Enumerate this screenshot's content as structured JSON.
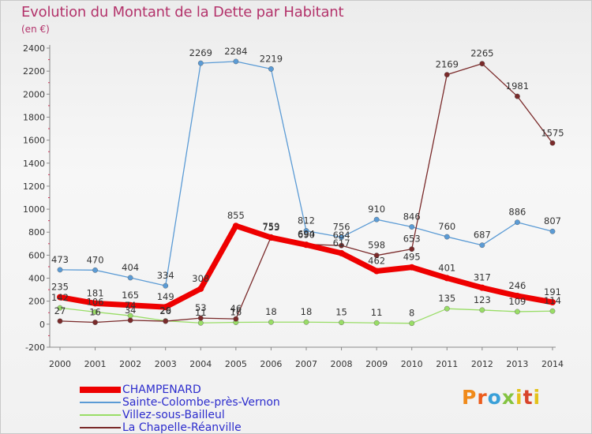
{
  "title": "Evolution du Montant de la Dette par Habitant",
  "subtitle": "(en €)",
  "logo_text": "Proxiti",
  "chart_data": {
    "type": "line",
    "title": "Evolution du Montant de la Dette par Habitant",
    "subtitle": "(en €)",
    "x": [
      "2000",
      "2001",
      "2002",
      "2003",
      "2004",
      "2005",
      "2006",
      "2007",
      "2008",
      "2009",
      "2010",
      "2011",
      "2012",
      "2013",
      "2014"
    ],
    "ylim": [
      -200,
      2400
    ],
    "yticks": [
      -200,
      0,
      200,
      400,
      600,
      800,
      1000,
      1200,
      1400,
      1600,
      1800,
      2000,
      2200,
      2400
    ],
    "grid": false,
    "legend_position": "bottom-left",
    "series": [
      {
        "name": "CHAMPENARD",
        "color": "#ee0000",
        "values": [
          235,
          181,
          165,
          149,
          308,
          855,
          753,
          690,
          617,
          462,
          495,
          401,
          317,
          246,
          191
        ]
      },
      {
        "name": "Sainte-Colombe-près-Vernon",
        "color": "#5b9bd5",
        "values": [
          473,
          470,
          404,
          334,
          2269,
          2284,
          2219,
          812,
          756,
          910,
          846,
          760,
          687,
          886,
          807
        ]
      },
      {
        "name": "Villez-sous-Bailleul",
        "color": "#99dd66",
        "values": [
          142,
          106,
          74,
          29,
          11,
          16,
          18,
          18,
          15,
          11,
          8,
          135,
          123,
          109,
          114
        ]
      },
      {
        "name": "La Chapelle-Réanville",
        "color": "#7a2a2a",
        "values": [
          27,
          16,
          34,
          26,
          53,
          46,
          759,
          694,
          684,
          598,
          653,
          2169,
          2265,
          1981,
          1575
        ]
      }
    ]
  }
}
